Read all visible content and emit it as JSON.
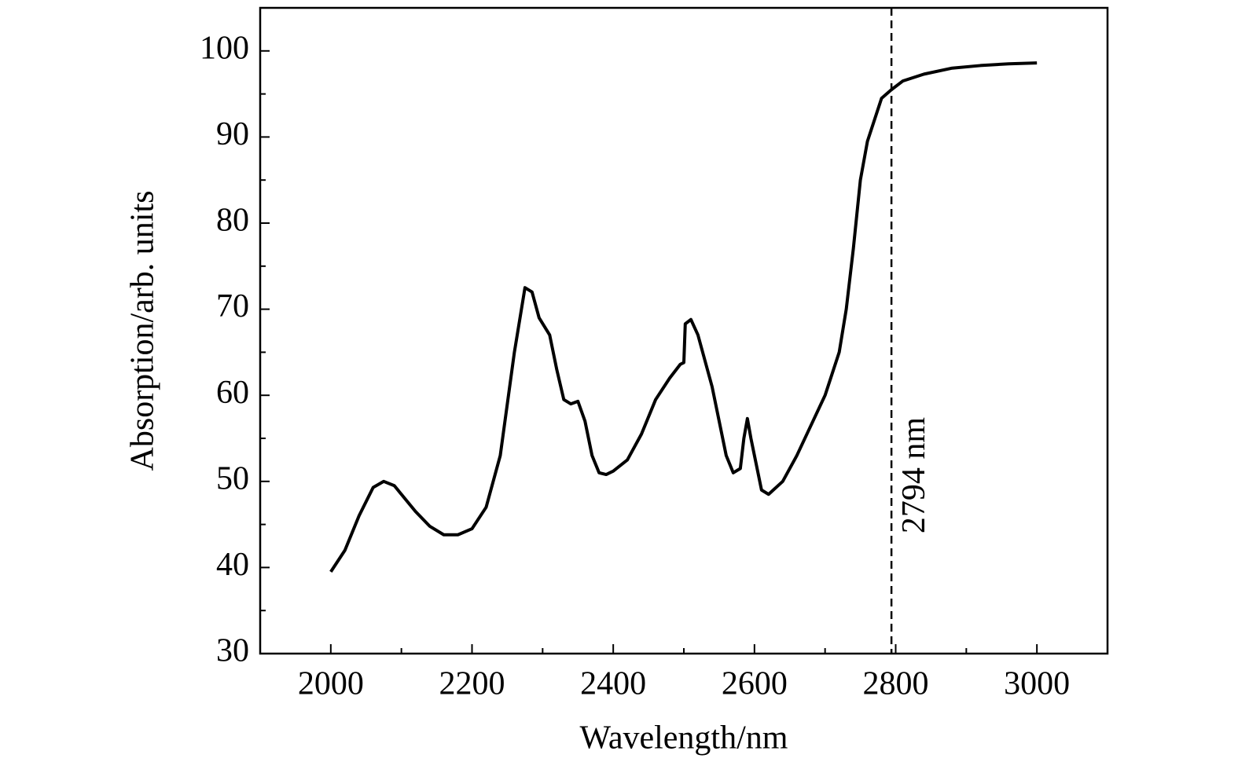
{
  "chart_data": {
    "type": "line",
    "x_label": "Wavelength/nm",
    "y_label": "Absorption/arb. units",
    "x": [
      2000,
      2020,
      2040,
      2060,
      2075,
      2090,
      2100,
      2120,
      2140,
      2160,
      2180,
      2200,
      2220,
      2240,
      2260,
      2275,
      2285,
      2295,
      2310,
      2320,
      2330,
      2340,
      2350,
      2360,
      2370,
      2380,
      2390,
      2400,
      2420,
      2440,
      2460,
      2480,
      2495,
      2500,
      2502,
      2510,
      2520,
      2540,
      2550,
      2560,
      2570,
      2580,
      2585,
      2590,
      2595,
      2600,
      2610,
      2620,
      2640,
      2660,
      2680,
      2700,
      2720,
      2730,
      2740,
      2750,
      2760,
      2770,
      2780,
      2794,
      2810,
      2840,
      2880,
      2920,
      2960,
      3000
    ],
    "series": [
      {
        "name": "Absorption",
        "color": "#000000",
        "values": [
          39.5,
          42,
          46,
          49.3,
          50,
          49.5,
          48.5,
          46.5,
          44.8,
          43.8,
          43.8,
          44.5,
          47,
          53,
          65,
          72.5,
          72,
          69,
          67,
          63,
          59.5,
          59,
          59.3,
          57,
          53,
          51,
          50.8,
          51.2,
          52.5,
          55.5,
          59.5,
          62,
          63.6,
          63.8,
          68.3,
          68.8,
          67,
          61,
          57,
          53,
          51,
          51.5,
          55,
          57.3,
          55,
          53,
          49,
          48.5,
          50,
          53,
          56.5,
          60,
          65,
          70,
          77,
          85,
          89.5,
          92,
          94.5,
          95.5,
          96.5,
          97.3,
          98,
          98.3,
          98.5,
          98.6
        ]
      }
    ],
    "vline": {
      "x": 2794,
      "label": "2794 nm"
    },
    "xlim": [
      1900,
      3100
    ],
    "ylim": [
      30,
      105
    ],
    "xticks": [
      2000,
      2200,
      2400,
      2600,
      2800,
      3000
    ],
    "yticks": [
      30,
      40,
      50,
      60,
      70,
      80,
      90,
      100
    ],
    "xminorticks": [
      2100,
      2300,
      2500,
      2700,
      2900
    ],
    "yminorticks": [
      35,
      45,
      55,
      65,
      75,
      85,
      95
    ]
  }
}
